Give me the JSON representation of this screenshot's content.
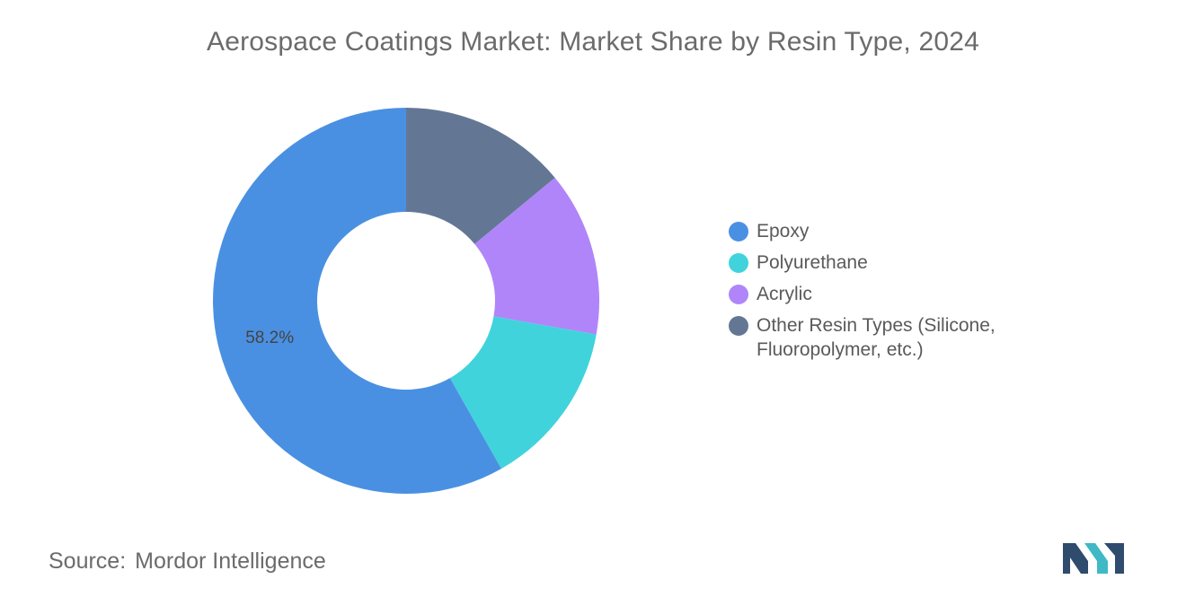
{
  "chart_data": {
    "type": "pie",
    "donut": true,
    "title": "Aerospace Coatings Market: Market Share by Resin Type, 2024",
    "unit": "%",
    "legend_position": "right",
    "slices": [
      {
        "name": "Epoxy",
        "value": 58.2,
        "color": "#4a90e2",
        "label": "58.2%"
      },
      {
        "name": "Polyurethane",
        "value": 14.0,
        "color": "#40d3dc",
        "label": ""
      },
      {
        "name": "Acrylic",
        "value": 13.8,
        "color": "#b085fa",
        "label": ""
      },
      {
        "name": "Other Resin Types (Silicone, Fluoropolymer, etc.)",
        "value": 14.0,
        "color": "#637795",
        "label": ""
      }
    ]
  },
  "legend_order": [
    0,
    1,
    2,
    3
  ],
  "source": {
    "prefix": "Source:",
    "name": "Mordor Intelligence"
  },
  "logo": {
    "icon": "mordor-intelligence-logo-icon",
    "colors": [
      "#2f4b6e",
      "#3fb9c6"
    ]
  }
}
